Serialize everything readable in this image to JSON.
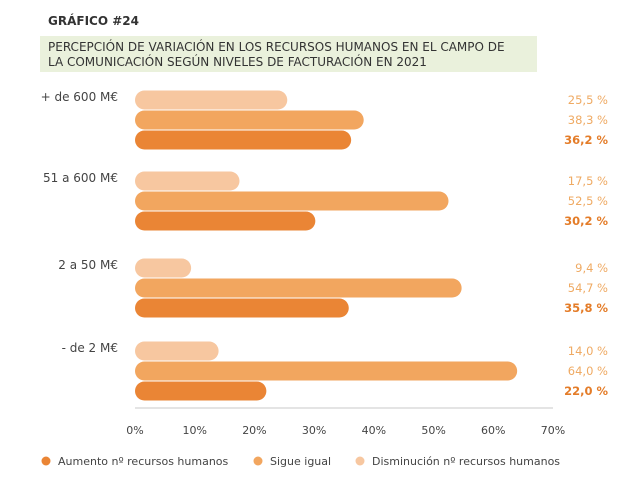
{
  "header": {
    "kicker": "GRÁFICO #24",
    "title_line1": "PERCEPCIÓN DE VARIACIÓN EN LOS RECURSOS HUMANOS EN EL CAMPO DE",
    "title_line2": "LA COMUNICACIÓN SEGÚN NIVELES DE FACTURACIÓN EN 2021"
  },
  "colors": {
    "aumento": "#ea8535",
    "sigue": "#f2a65f",
    "disminucion": "#f7c7a0",
    "label_light": "#efaa63",
    "label_bold": "#e47c28",
    "title_bg": "#eaf1dc"
  },
  "chart_data": {
    "type": "bar",
    "orientation": "horizontal",
    "categories": [
      "+ de 600 M€",
      "51 a 600 M€",
      "2 a 50 M€",
      "- de 2 M€"
    ],
    "series": [
      {
        "name": "Disminución nº recursos humanos",
        "values": [
          25.5,
          17.5,
          9.4,
          14.0
        ],
        "labels": [
          "25,5 %",
          "17,5 %",
          "9,4 %",
          "14,0 %"
        ]
      },
      {
        "name": "Sigue igual",
        "values": [
          38.3,
          52.5,
          54.7,
          64.0
        ],
        "labels": [
          "38,3 %",
          "52,5 %",
          "54,7 %",
          "64,0 %"
        ]
      },
      {
        "name": "Aumento nº recursos humanos",
        "values": [
          36.2,
          30.2,
          35.8,
          22.0
        ],
        "labels": [
          "36,2 %",
          "30,2 %",
          "35,8 %",
          "22,0 %"
        ]
      }
    ],
    "xlim": [
      0,
      70
    ],
    "xticks": [
      0,
      10,
      20,
      30,
      40,
      50,
      60,
      70
    ],
    "xtick_labels": [
      "0%",
      "10%",
      "20%",
      "30%",
      "40%",
      "50%",
      "60%",
      "70%"
    ],
    "grid": false,
    "legend_position": "bottom",
    "legend": [
      {
        "name": "Aumento nº recursos humanos",
        "color": "#ea8535"
      },
      {
        "name": "Sigue igual",
        "color": "#f2a65f"
      },
      {
        "name": "Disminución nº recursos humanos",
        "color": "#f7c7a0"
      }
    ]
  }
}
